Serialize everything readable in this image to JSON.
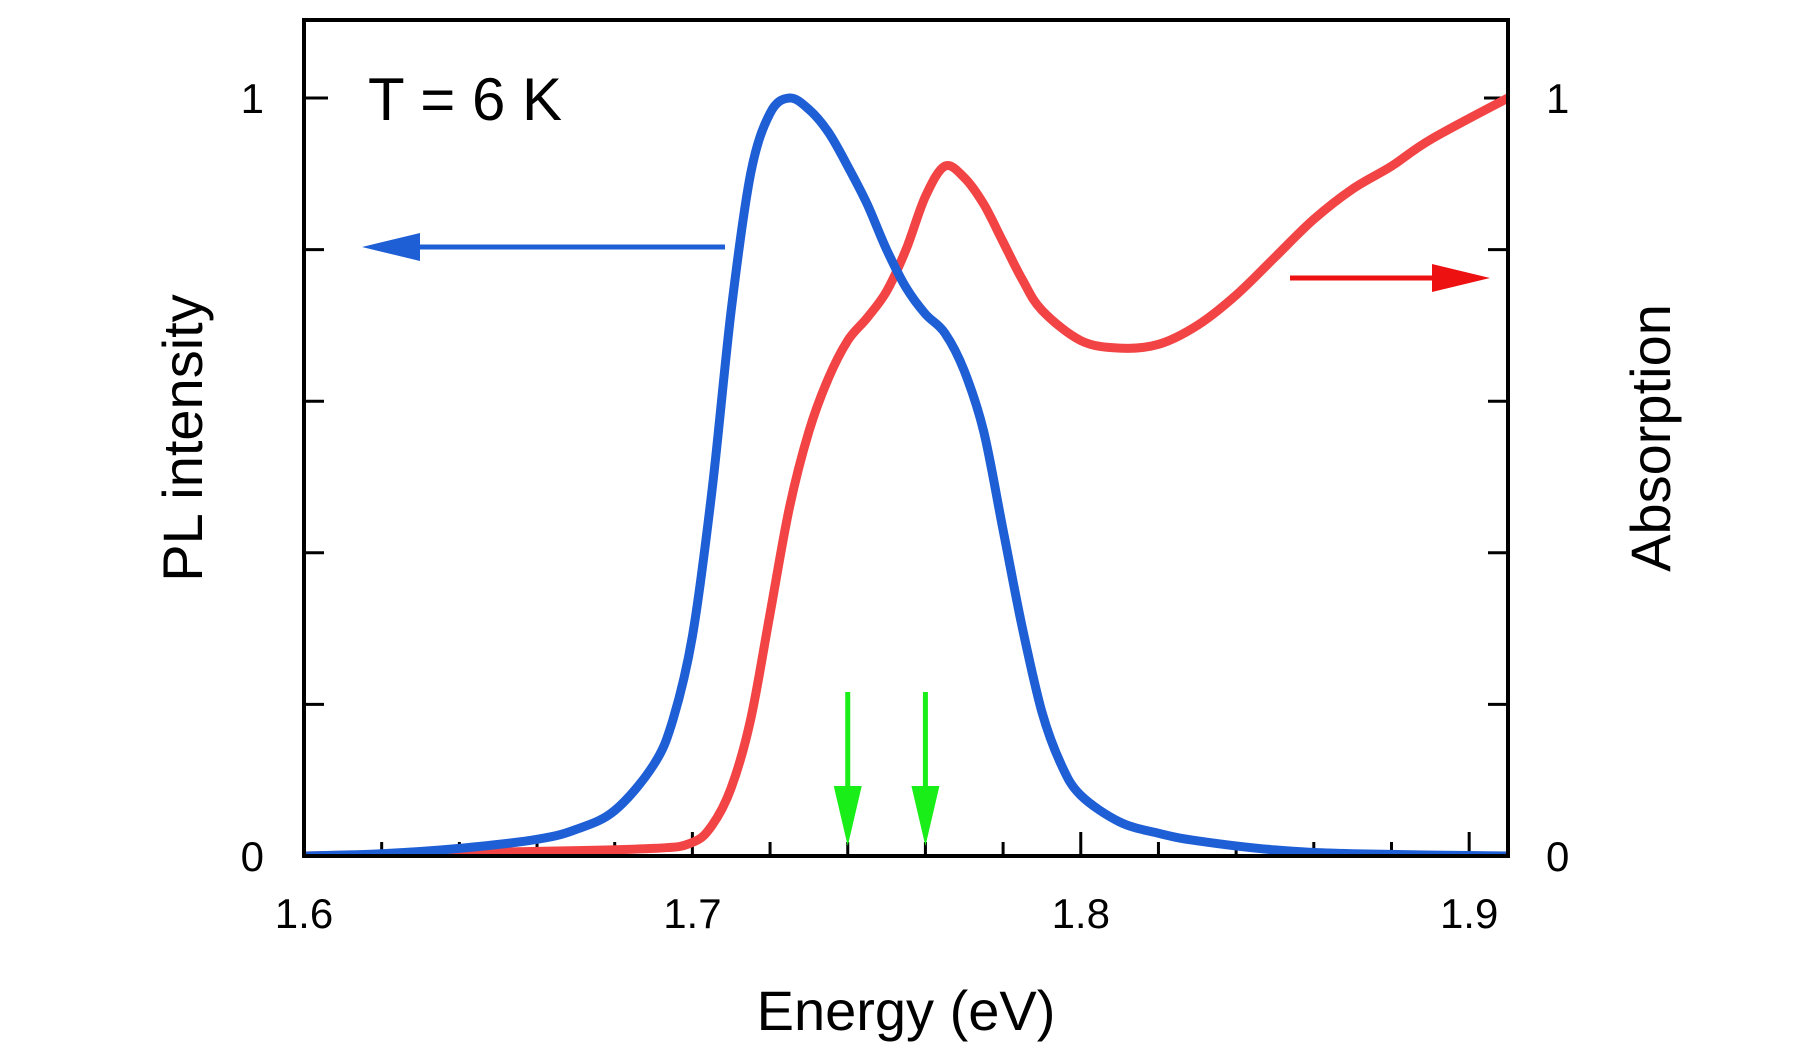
{
  "chart_data": {
    "type": "line",
    "xlabel": "Energy (eV)",
    "ylabel_left": "PL intensity",
    "ylabel_right": "Absorption",
    "annotation": "T = 6 K",
    "xlim": [
      1.6,
      1.91
    ],
    "ylim_left": [
      0,
      1
    ],
    "ylim_right": [
      0,
      1
    ],
    "x_ticks": [
      {
        "value": 1.6,
        "label": "1.6"
      },
      {
        "value": 1.7,
        "label": "1.7"
      },
      {
        "value": 1.8,
        "label": "1.8"
      },
      {
        "value": 1.9,
        "label": "1.9"
      }
    ],
    "y_ticks_left": [
      {
        "value": 0,
        "label": "0"
      },
      {
        "value": 1,
        "label": "1"
      }
    ],
    "y_ticks_right": [
      {
        "value": 0,
        "label": "0"
      },
      {
        "value": 1,
        "label": "1"
      }
    ],
    "series": [
      {
        "name": "PL intensity",
        "axis": "left",
        "color": "#1f5fd6",
        "x": [
          1.6,
          1.62,
          1.64,
          1.66,
          1.67,
          1.68,
          1.69,
          1.695,
          1.7,
          1.705,
          1.71,
          1.715,
          1.72,
          1.725,
          1.73,
          1.735,
          1.74,
          1.745,
          1.75,
          1.755,
          1.76,
          1.765,
          1.77,
          1.775,
          1.78,
          1.785,
          1.79,
          1.795,
          1.8,
          1.81,
          1.82,
          1.83,
          1.85,
          1.87,
          1.91
        ],
        "y": [
          0.0,
          0.003,
          0.01,
          0.022,
          0.035,
          0.06,
          0.12,
          0.18,
          0.29,
          0.48,
          0.72,
          0.9,
          0.98,
          1.0,
          0.985,
          0.955,
          0.91,
          0.86,
          0.8,
          0.75,
          0.715,
          0.69,
          0.64,
          0.56,
          0.43,
          0.3,
          0.19,
          0.12,
          0.08,
          0.045,
          0.03,
          0.02,
          0.008,
          0.003,
          0.0
        ]
      },
      {
        "name": "Absorption",
        "axis": "right",
        "color": "#f24444",
        "x": [
          1.6,
          1.65,
          1.69,
          1.7,
          1.705,
          1.71,
          1.715,
          1.72,
          1.725,
          1.73,
          1.735,
          1.74,
          1.745,
          1.75,
          1.755,
          1.76,
          1.765,
          1.77,
          1.775,
          1.78,
          1.785,
          1.79,
          1.8,
          1.81,
          1.82,
          1.83,
          1.84,
          1.85,
          1.86,
          1.87,
          1.88,
          1.89,
          1.91
        ],
        "y": [
          0.0,
          0.005,
          0.01,
          0.018,
          0.04,
          0.09,
          0.18,
          0.32,
          0.46,
          0.56,
          0.63,
          0.68,
          0.71,
          0.745,
          0.8,
          0.87,
          0.91,
          0.895,
          0.86,
          0.81,
          0.76,
          0.72,
          0.68,
          0.67,
          0.675,
          0.7,
          0.74,
          0.79,
          0.84,
          0.88,
          0.91,
          0.945,
          1.0
        ]
      }
    ],
    "arrows": [
      {
        "direction": "left",
        "color": "#1f5fd6",
        "points_to": "PL intensity axis"
      },
      {
        "direction": "right",
        "color": "#ee1111",
        "points_to": "Absorption axis"
      }
    ],
    "markers": [
      {
        "x": 1.74,
        "color": "#19ee19"
      },
      {
        "x": 1.76,
        "color": "#19ee19"
      }
    ]
  }
}
